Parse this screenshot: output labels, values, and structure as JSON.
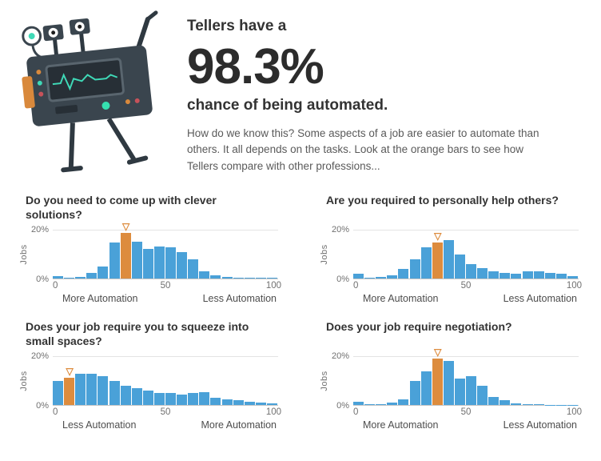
{
  "header": {
    "line1": "Tellers have a",
    "percent": "98.3%",
    "line2": "chance of being automated.",
    "description": "How do we know this? Some aspects of a job are easier to automate than others. It all depends on the tasks. Look at the orange bars to see how Tellers compare with other professions..."
  },
  "colors": {
    "bar_blue": "#4aa1d8",
    "bar_orange": "#dd8c3e"
  },
  "marker_glyph": "▽",
  "chart_data": [
    {
      "type": "bar",
      "title": "Do you need to come up with clever solutions?",
      "ylabel": "Jobs",
      "yticks": [
        "20%",
        "0%"
      ],
      "ylim": [
        0,
        20
      ],
      "xticks": [
        "0",
        "50",
        "100"
      ],
      "x_range": [
        0,
        100
      ],
      "bin_width": 5,
      "x_left_label": "More Automation",
      "x_right_label": "Less Automation",
      "values": [
        1,
        0.4,
        0.8,
        2.5,
        5,
        15,
        19,
        15.5,
        12.5,
        13.5,
        13,
        11,
        8,
        3,
        1.2,
        0.8,
        0.5,
        0.4,
        0.3,
        0.2
      ],
      "highlight_index": 6
    },
    {
      "type": "bar",
      "title": "Are you required to personally help others?",
      "ylabel": "Jobs",
      "yticks": [
        "20%",
        "0%"
      ],
      "ylim": [
        0,
        20
      ],
      "xticks": [
        "0",
        "50",
        "100"
      ],
      "x_range": [
        0,
        100
      ],
      "bin_width": 5,
      "x_left_label": "More Automation",
      "x_right_label": "Less Automation",
      "values": [
        2,
        0.4,
        0.6,
        1.5,
        4,
        8,
        13,
        15,
        16,
        10,
        6,
        4.5,
        3,
        2.5,
        2,
        3,
        3,
        2.5,
        2,
        1
      ],
      "highlight_index": 7
    },
    {
      "type": "bar",
      "title": "Does your job require you to squeeze into small spaces?",
      "ylabel": "Jobs",
      "yticks": [
        "20%",
        "0%"
      ],
      "ylim": [
        0,
        20
      ],
      "xticks": [
        "0",
        "50",
        "100"
      ],
      "x_range": [
        0,
        100
      ],
      "bin_width": 5,
      "x_left_label": "Less Automation",
      "x_right_label": "More Automation",
      "values": [
        10,
        11.5,
        13,
        13,
        12,
        10,
        8,
        7,
        6,
        5,
        5,
        4.5,
        5,
        5.5,
        3,
        2.5,
        2,
        1.5,
        1,
        0.6
      ],
      "highlight_index": 1
    },
    {
      "type": "bar",
      "title": "Does your job require negotiation?",
      "ylabel": "Jobs",
      "yticks": [
        "20%",
        "0%"
      ],
      "ylim": [
        0,
        20
      ],
      "xticks": [
        "0",
        "50",
        "100"
      ],
      "x_range": [
        0,
        100
      ],
      "bin_width": 5,
      "x_left_label": "More Automation",
      "x_right_label": "Less Automation",
      "values": [
        1.5,
        0.2,
        0.3,
        1,
        2.5,
        10,
        14,
        19.5,
        18.5,
        11,
        12,
        8,
        3.5,
        2,
        0.8,
        0.4,
        0.2,
        0.1,
        0.1,
        0.1
      ],
      "highlight_index": 7
    }
  ]
}
